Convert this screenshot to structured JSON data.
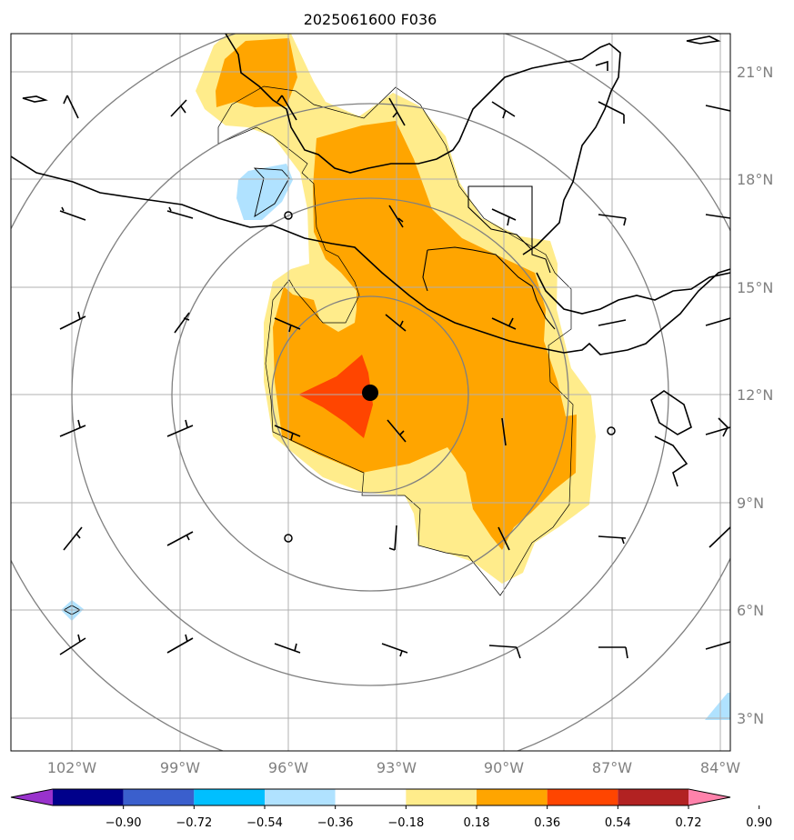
{
  "title": "2025061600 F036",
  "lon_ticks": [
    {
      "lon": -102,
      "label": "102°W"
    },
    {
      "lon": -99,
      "label": "99°W"
    },
    {
      "lon": -96,
      "label": "96°W"
    },
    {
      "lon": -93,
      "label": "93°W"
    },
    {
      "lon": -90,
      "label": "90°W"
    },
    {
      "lon": -87,
      "label": "87°W"
    },
    {
      "lon": -84,
      "label": "84°W"
    }
  ],
  "lat_ticks": [
    {
      "lat": 21,
      "label": "21°N"
    },
    {
      "lat": 18,
      "label": "18°N"
    },
    {
      "lat": 15,
      "label": "15°N"
    },
    {
      "lat": 12,
      "label": "12°N"
    },
    {
      "lat": 9,
      "label": "9°N"
    },
    {
      "lat": 6,
      "label": "6°N"
    },
    {
      "lat": 3,
      "label": "3°N"
    }
  ],
  "extent": {
    "lon_min": -103.7,
    "lon_max": -83.7,
    "lat_min": 2.0,
    "lat_max": 22.0
  },
  "colorbar": {
    "levels": [
      "−0.90",
      "−0.72",
      "−0.54",
      "−0.36",
      "−0.18",
      "0.18",
      "0.36",
      "0.54",
      "0.72",
      "0.90"
    ],
    "colors": [
      "#9932cc",
      "#00008b",
      "#3a5fcd",
      "#00bfff",
      "#b0e2ff",
      "#ffffff",
      "#ffec8b",
      "#ffa500",
      "#ff4500",
      "#b22222",
      "#ff82ab"
    ],
    "extend": "both"
  },
  "storm_center": {
    "lon": -93.7,
    "lat": 12.1
  },
  "range_rings_center": {
    "lon": -93.7,
    "lat": 12.1
  },
  "colors": {
    "ring": "#808080",
    "grid": "#b0b0b0",
    "coast": "#000000",
    "tick_text": "#808080"
  }
}
